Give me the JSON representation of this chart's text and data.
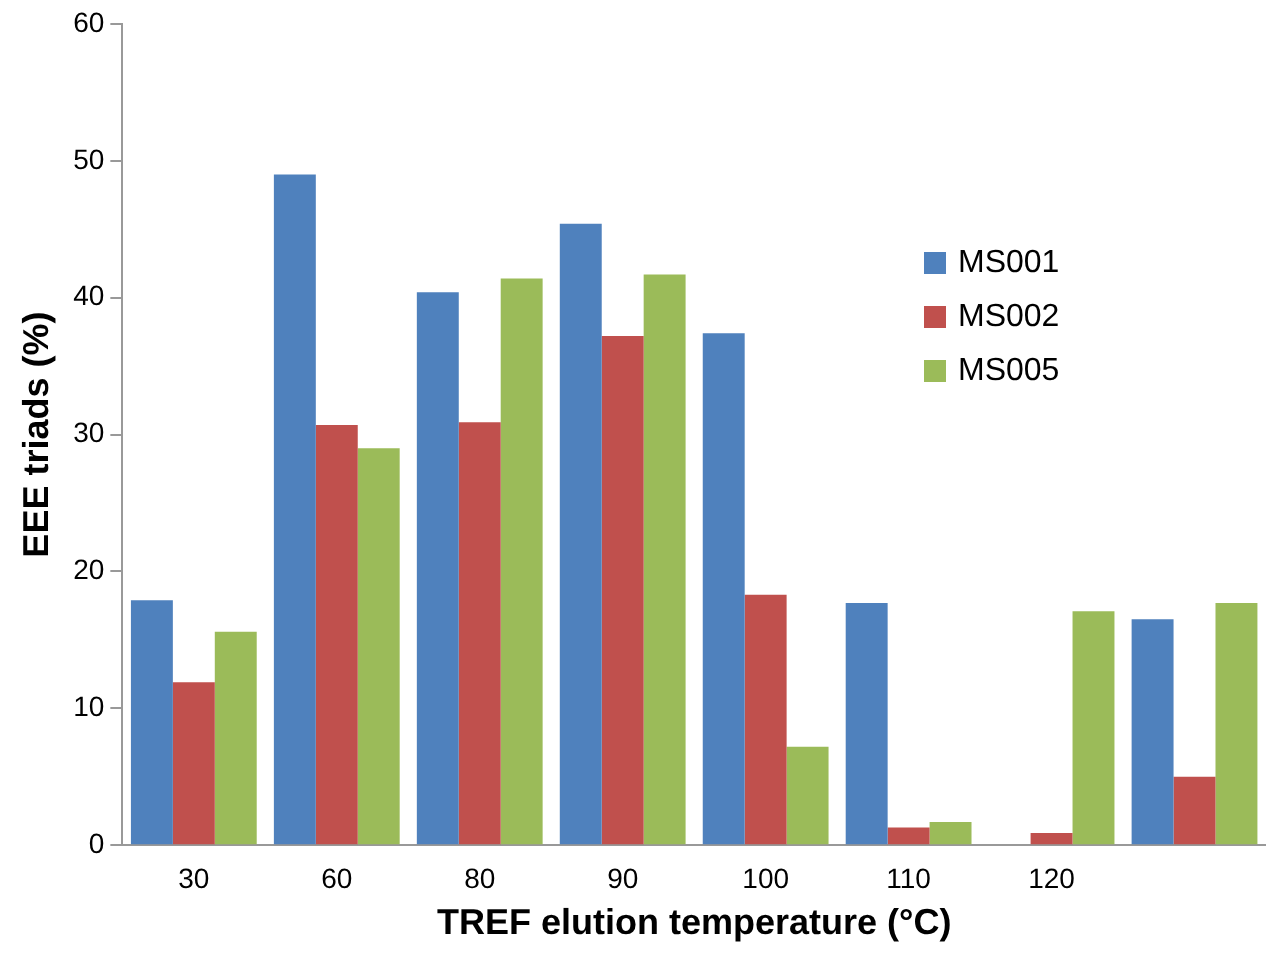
{
  "chart_data": {
    "type": "bar",
    "xlabel": "TREF elution temperature (°C)",
    "ylabel": "EEE triads (%)",
    "categories": [
      "30",
      "60",
      "80",
      "90",
      "100",
      "110",
      "120",
      null
    ],
    "series": [
      {
        "name": "MS001",
        "color": "#4f81bd",
        "values": [
          17.9,
          49.0,
          40.4,
          45.4,
          37.4,
          17.7,
          0,
          16.5
        ]
      },
      {
        "name": "MS002",
        "color": "#c0504d",
        "values": [
          11.9,
          30.7,
          30.9,
          37.2,
          18.3,
          1.3,
          0.9,
          5.0
        ]
      },
      {
        "name": "MS005",
        "color": "#9bbb59",
        "values": [
          15.6,
          29.0,
          41.4,
          41.7,
          7.2,
          1.7,
          17.1,
          17.7
        ]
      }
    ],
    "ylim": [
      0,
      60
    ],
    "yticks": [
      0,
      10,
      20,
      30,
      40,
      50,
      60
    ],
    "grid": false,
    "legend": "right"
  }
}
